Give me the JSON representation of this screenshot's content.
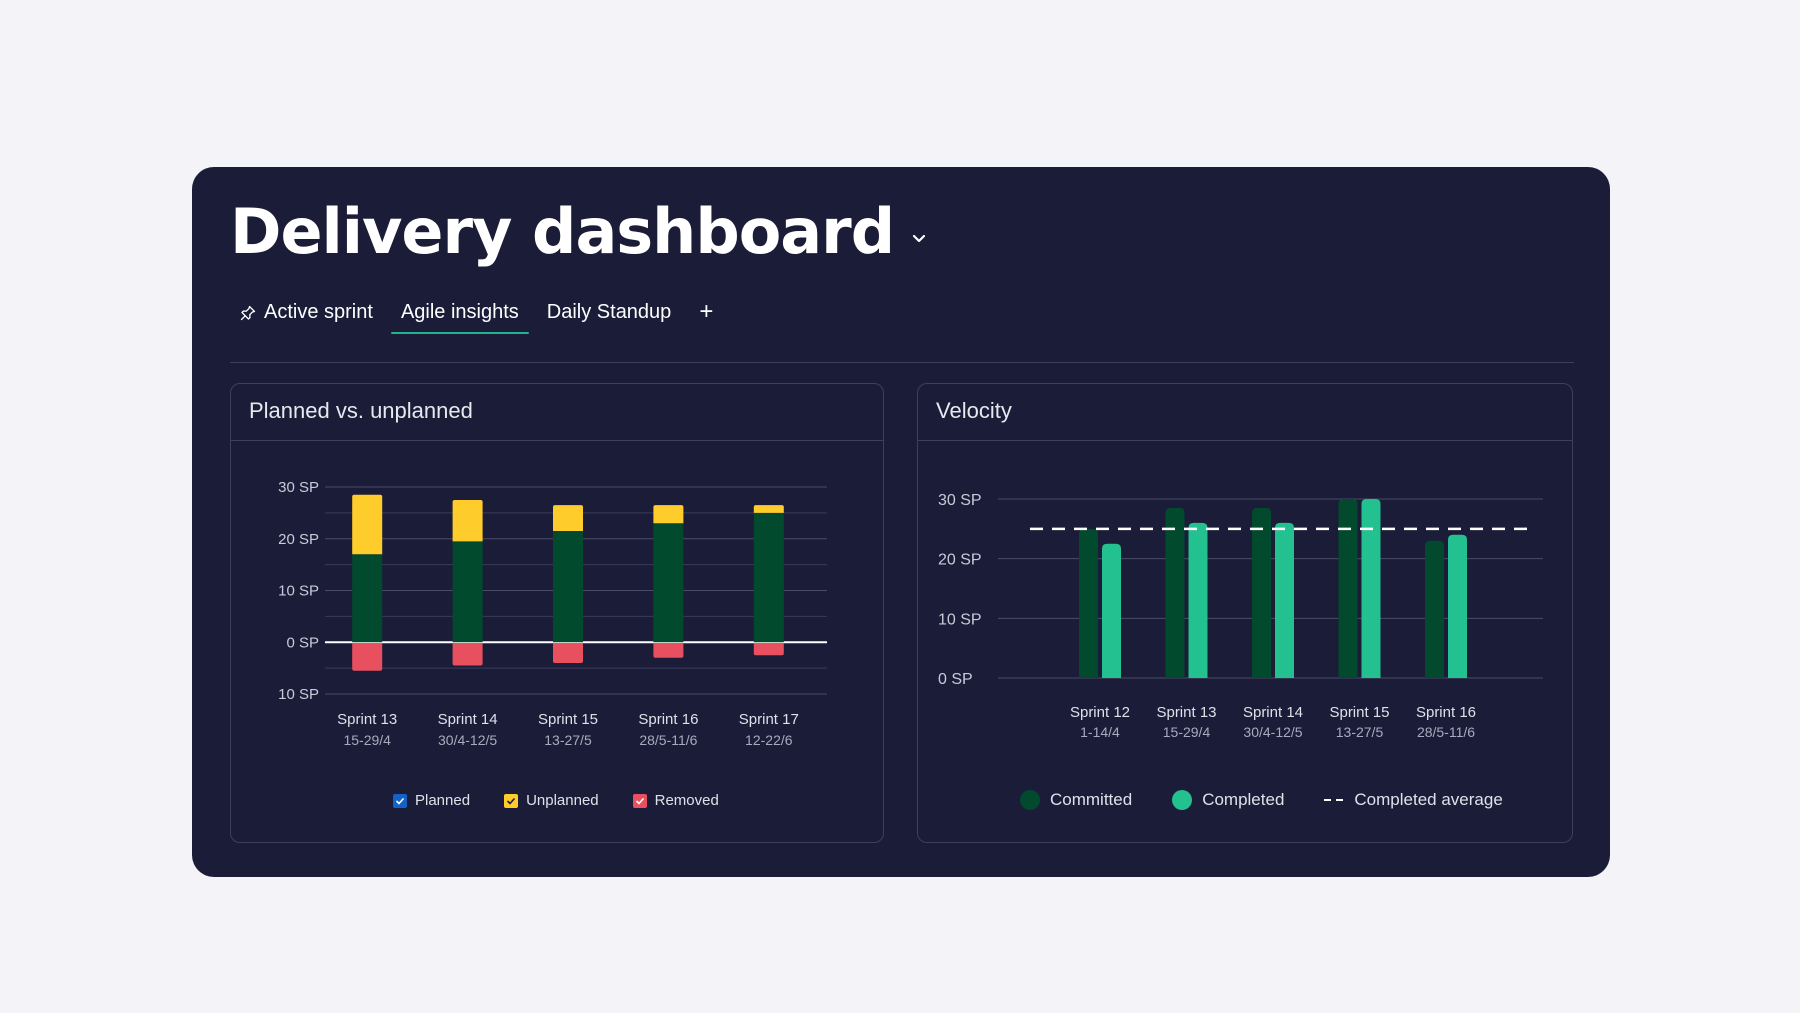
{
  "header": {
    "title": "Delivery dashboard"
  },
  "tabs": [
    {
      "label": "Active sprint",
      "icon": "pin-icon"
    },
    {
      "label": "Agile insights",
      "active": true
    },
    {
      "label": "Daily Standup"
    }
  ],
  "add_tab_label": "+",
  "colors": {
    "background": "#1b1c38",
    "planned": "#014a2d",
    "unplanned": "#ffcd2b",
    "removed": "#e8505f",
    "committed": "#014a2d",
    "completed": "#23c190",
    "tab_underline": "#1fb58a",
    "checkbox_planned": "#1363c6"
  },
  "planned_card": {
    "title": "Planned vs. unplanned",
    "legend": [
      {
        "label": "Planned",
        "color": "#1363c6"
      },
      {
        "label": "Unplanned",
        "color": "#ffcd2b"
      },
      {
        "label": "Removed",
        "color": "#e8505f"
      }
    ]
  },
  "velocity_card": {
    "title": "Velocity",
    "legend": [
      {
        "label": "Committed",
        "color": "#014a2d"
      },
      {
        "label": "Completed",
        "color": "#23c190"
      },
      {
        "label": "Completed average"
      }
    ]
  },
  "chart_data": [
    {
      "type": "bar",
      "stacked": true,
      "title": "Planned vs. unplanned",
      "categories": [
        "Sprint 13",
        "Sprint 14",
        "Sprint 15",
        "Sprint 16",
        "Sprint 17"
      ],
      "category_dates": [
        "15-29/4",
        "30/4-12/5",
        "13-27/5",
        "28/5-11/6",
        "12-22/6"
      ],
      "y_ticks": [
        30,
        20,
        10,
        0,
        -10
      ],
      "y_tick_labels": [
        "30 SP",
        "20 SP",
        "10 SP",
        "0 SP",
        "10 SP"
      ],
      "ylim": [
        -10,
        30
      ],
      "series": [
        {
          "name": "Planned",
          "values": [
            17,
            19.5,
            21.5,
            23,
            25
          ]
        },
        {
          "name": "Unplanned",
          "values": [
            11.5,
            8,
            5,
            3.5,
            1.5
          ]
        },
        {
          "name": "Removed",
          "values": [
            -5.5,
            -4.5,
            -4,
            -3,
            -2.5
          ]
        }
      ],
      "grid": true,
      "legend_position": "bottom"
    },
    {
      "type": "bar",
      "title": "Velocity",
      "categories": [
        "Sprint 12",
        "Sprint 13",
        "Sprint 14",
        "Sprint 15",
        "Sprint 16"
      ],
      "category_dates": [
        "1-14/4",
        "15-29/4",
        "30/4-12/5",
        "13-27/5",
        "28/5-11/6"
      ],
      "y_ticks": [
        30,
        20,
        10,
        0
      ],
      "y_tick_labels": [
        "30 SP",
        "20 SP",
        "10 SP",
        "0 SP"
      ],
      "ylim": [
        0,
        30
      ],
      "series": [
        {
          "name": "Committed",
          "values": [
            25,
            28.5,
            28.5,
            30,
            23
          ]
        },
        {
          "name": "Completed",
          "values": [
            22.5,
            26,
            26,
            30,
            24
          ]
        }
      ],
      "average_line": {
        "name": "Completed average",
        "value": 25
      },
      "grid": true,
      "legend_position": "bottom"
    }
  ]
}
